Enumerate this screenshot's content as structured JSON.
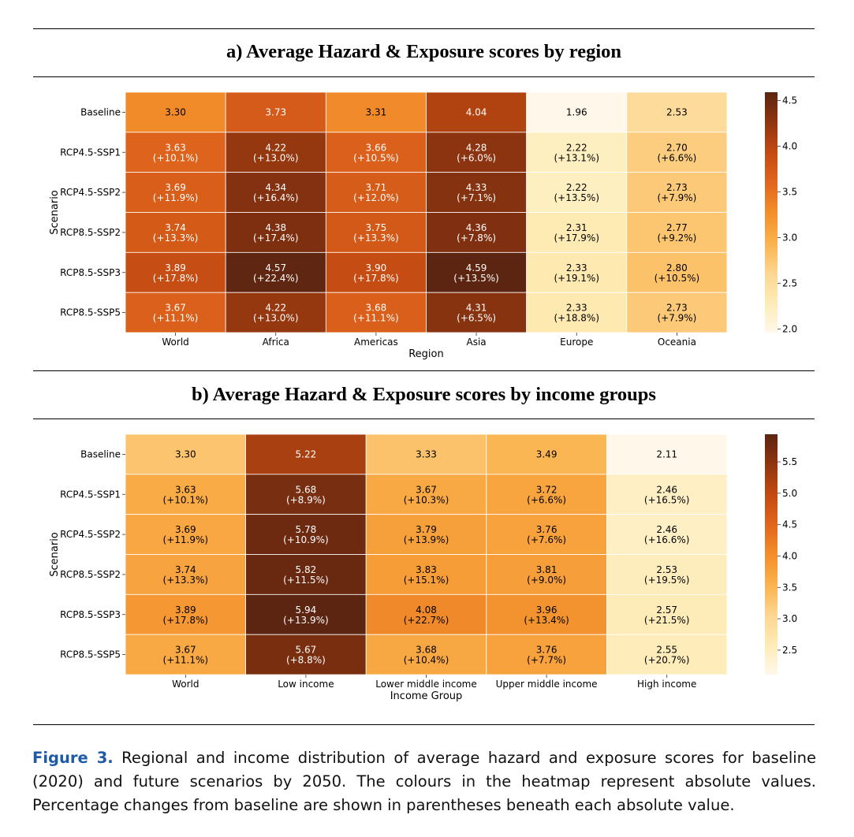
{
  "colormap": "YlOrBr",
  "colormap_stops": [
    "#fff8ea",
    "#feecb6",
    "#fdd590",
    "#fbb24c",
    "#f28e2b",
    "#e0651d",
    "#c24a12",
    "#8f3510",
    "#5c2511"
  ],
  "panels": {
    "a": {
      "title": "a) Average Hazard & Exposure scores by region"
    },
    "b": {
      "title": "b) Average Hazard & Exposure scores by income groups"
    }
  },
  "caption": {
    "label": "Figure 3.",
    "text": " Regional and income distribution of average hazard and exposure scores for baseline (2020) and future scenarios by 2050. The colours in the heatmap represent absolute values. Percentage changes from baseline are shown in parentheses beneath each absolute value."
  },
  "chart_data": [
    {
      "type": "heatmap",
      "title": "a) Average Hazard & Exposure scores by region",
      "xlabel": "Region",
      "ylabel": "Scenario",
      "x": [
        "World",
        "Africa",
        "Americas",
        "Asia",
        "Europe",
        "Oceania"
      ],
      "y": [
        "Baseline",
        "RCP4.5-SSP1",
        "RCP4.5-SSP2",
        "RCP8.5-SSP2",
        "RCP8.5-SSP3",
        "RCP8.5-SSP5"
      ],
      "values": [
        [
          3.3,
          3.73,
          3.31,
          4.04,
          1.96,
          2.53
        ],
        [
          3.63,
          4.22,
          3.66,
          4.28,
          2.22,
          2.7
        ],
        [
          3.69,
          4.34,
          3.71,
          4.33,
          2.22,
          2.73
        ],
        [
          3.74,
          4.38,
          3.75,
          4.36,
          2.31,
          2.77
        ],
        [
          3.89,
          4.57,
          3.9,
          4.59,
          2.33,
          2.8
        ],
        [
          3.67,
          4.22,
          3.68,
          4.31,
          2.33,
          2.73
        ]
      ],
      "cell_labels": [
        [
          "3.30",
          "3.73",
          "3.31",
          "4.04",
          "1.96",
          "2.53"
        ],
        [
          "3.63",
          "4.22",
          "3.66",
          "4.28",
          "2.22",
          "2.70"
        ],
        [
          "3.69",
          "4.34",
          "3.71",
          "4.33",
          "2.22",
          "2.73"
        ],
        [
          "3.74",
          "4.38",
          "3.75",
          "4.36",
          "2.31",
          "2.77"
        ],
        [
          "3.89",
          "4.57",
          "3.90",
          "4.59",
          "2.33",
          "2.80"
        ],
        [
          "3.67",
          "4.22",
          "3.68",
          "4.31",
          "2.33",
          "2.73"
        ]
      ],
      "pct_labels": [
        [
          "",
          "",
          "",
          "",
          "",
          ""
        ],
        [
          "(+10.1%)",
          "(+13.0%)",
          "(+10.5%)",
          "(+6.0%)",
          "(+13.1%)",
          "(+6.6%)"
        ],
        [
          "(+11.9%)",
          "(+16.4%)",
          "(+12.0%)",
          "(+7.1%)",
          "(+13.5%)",
          "(+7.9%)"
        ],
        [
          "(+13.3%)",
          "(+17.4%)",
          "(+13.3%)",
          "(+7.8%)",
          "(+17.9%)",
          "(+9.2%)"
        ],
        [
          "(+17.8%)",
          "(+22.4%)",
          "(+17.8%)",
          "(+13.5%)",
          "(+19.1%)",
          "(+10.5%)"
        ],
        [
          "(+11.1%)",
          "(+13.0%)",
          "(+11.1%)",
          "(+6.5%)",
          "(+18.8%)",
          "(+7.9%)"
        ]
      ],
      "color_range": [
        1.96,
        4.59
      ],
      "colorbar_ticks": [
        2.0,
        2.5,
        3.0,
        3.5,
        4.0,
        4.5
      ],
      "colorbar_tick_labels": [
        "2.0",
        "2.5",
        "3.0",
        "3.5",
        "4.0",
        "4.5"
      ]
    },
    {
      "type": "heatmap",
      "title": "b) Average Hazard & Exposure scores by income groups",
      "xlabel": "Income Group",
      "ylabel": "Scenario",
      "x": [
        "World",
        "Low income",
        "Lower middle income",
        "Upper middle income",
        "High income"
      ],
      "y": [
        "Baseline",
        "RCP4.5-SSP1",
        "RCP4.5-SSP2",
        "RCP8.5-SSP2",
        "RCP8.5-SSP3",
        "RCP8.5-SSP5"
      ],
      "values": [
        [
          3.3,
          5.22,
          3.33,
          3.49,
          2.11
        ],
        [
          3.63,
          5.68,
          3.67,
          3.72,
          2.46
        ],
        [
          3.69,
          5.78,
          3.79,
          3.76,
          2.46
        ],
        [
          3.74,
          5.82,
          3.83,
          3.81,
          2.53
        ],
        [
          3.89,
          5.94,
          4.08,
          3.96,
          2.57
        ],
        [
          3.67,
          5.67,
          3.68,
          3.76,
          2.55
        ]
      ],
      "cell_labels": [
        [
          "3.30",
          "5.22",
          "3.33",
          "3.49",
          "2.11"
        ],
        [
          "3.63",
          "5.68",
          "3.67",
          "3.72",
          "2.46"
        ],
        [
          "3.69",
          "5.78",
          "3.79",
          "3.76",
          "2.46"
        ],
        [
          "3.74",
          "5.82",
          "3.83",
          "3.81",
          "2.53"
        ],
        [
          "3.89",
          "5.94",
          "4.08",
          "3.96",
          "2.57"
        ],
        [
          "3.67",
          "5.67",
          "3.68",
          "3.76",
          "2.55"
        ]
      ],
      "pct_labels": [
        [
          "",
          "",
          "",
          "",
          ""
        ],
        [
          "(+10.1%)",
          "(+8.9%)",
          "(+10.3%)",
          "(+6.6%)",
          "(+16.5%)"
        ],
        [
          "(+11.9%)",
          "(+10.9%)",
          "(+13.9%)",
          "(+7.6%)",
          "(+16.6%)"
        ],
        [
          "(+13.3%)",
          "(+11.5%)",
          "(+15.1%)",
          "(+9.0%)",
          "(+19.5%)"
        ],
        [
          "(+17.8%)",
          "(+13.9%)",
          "(+22.7%)",
          "(+13.4%)",
          "(+21.5%)"
        ],
        [
          "(+11.1%)",
          "(+8.8%)",
          "(+10.4%)",
          "(+7.7%)",
          "(+20.7%)"
        ]
      ],
      "color_range": [
        2.11,
        5.94
      ],
      "colorbar_ticks": [
        2.5,
        3.0,
        3.5,
        4.0,
        4.5,
        5.0,
        5.5
      ],
      "colorbar_tick_labels": [
        "2.5",
        "3.0",
        "3.5",
        "4.0",
        "4.5",
        "5.0",
        "5.5"
      ]
    }
  ]
}
